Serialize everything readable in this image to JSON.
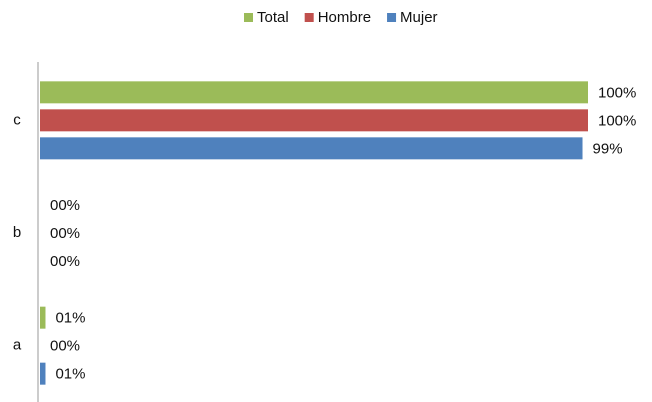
{
  "chart_data": {
    "type": "bar",
    "orientation": "horizontal",
    "categories": [
      "a",
      "b",
      "c"
    ],
    "series": [
      {
        "name": "Total",
        "color": "#9bbb59",
        "values": [
          1,
          0,
          100
        ],
        "value_labels": [
          "01%",
          "00%",
          "100%"
        ]
      },
      {
        "name": "Hombre",
        "color": "#c0504d",
        "values": [
          0,
          0,
          100
        ],
        "value_labels": [
          "00%",
          "00%",
          "100%"
        ]
      },
      {
        "name": "Mujer",
        "color": "#4f81bd",
        "values": [
          1,
          0,
          99
        ],
        "value_labels": [
          "01%",
          "00%",
          "99%"
        ]
      }
    ],
    "xlim": [
      0,
      100
    ],
    "legend": "top"
  }
}
